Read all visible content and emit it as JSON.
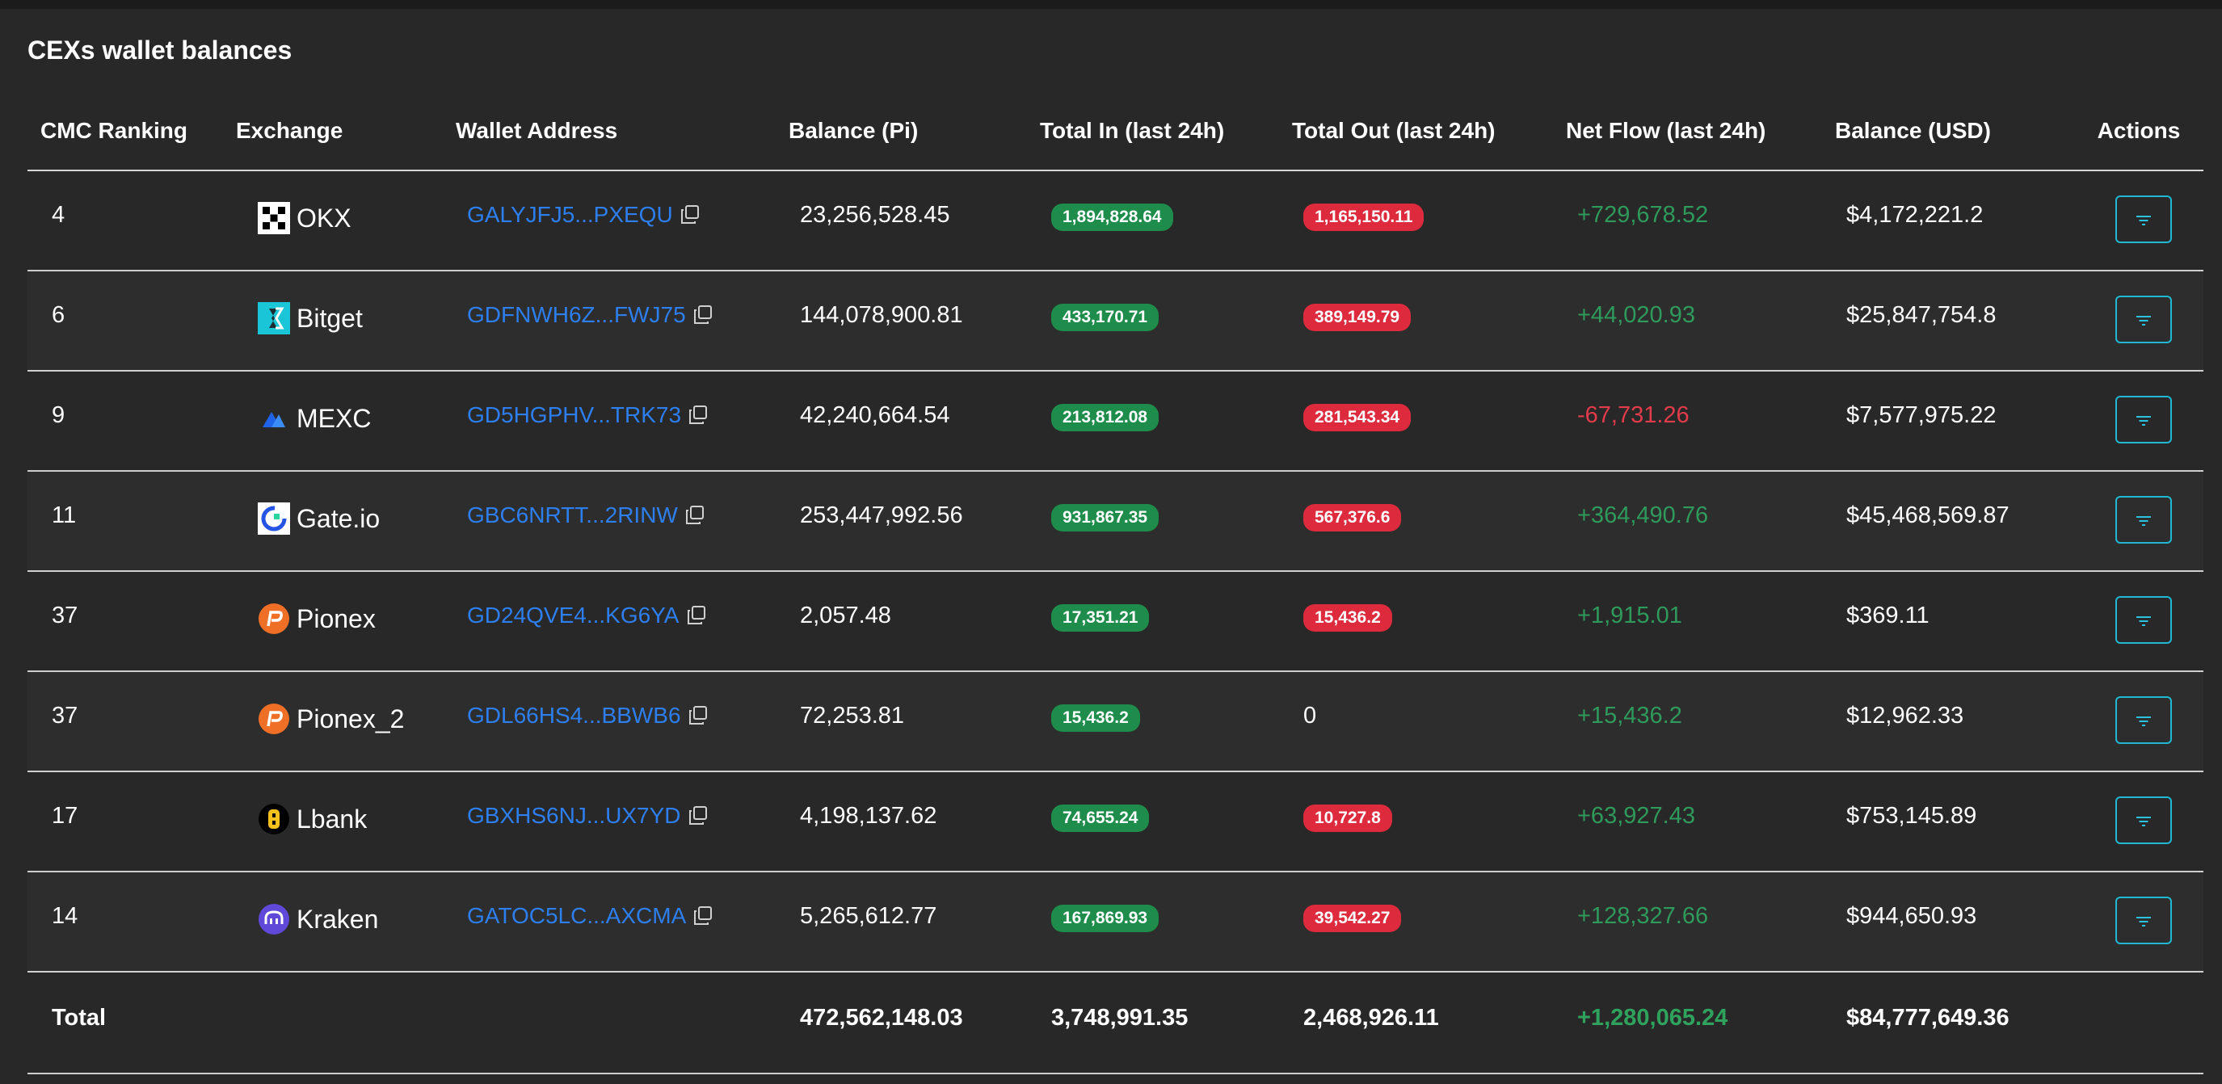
{
  "title": "CEXs wallet balances",
  "colors": {
    "link": "#2d7ff0",
    "badge_green": "#1e8c4b",
    "badge_red": "#de2a3d",
    "flow_positive": "#2e9a5b",
    "flow_negative": "#e23b4a",
    "action_border": "#1fb9d4"
  },
  "table": {
    "headers": [
      "CMC Ranking",
      "Exchange",
      "Wallet Address",
      "Balance (Pi)",
      "Total In (last 24h)",
      "Total Out (last 24h)",
      "Net Flow (last 24h)",
      "Balance (USD)",
      "Actions"
    ],
    "rows": [
      {
        "rank": "4",
        "exchange": "OKX",
        "logo": "okx-logo-icon",
        "address": "GALYJFJ5...PXEQU",
        "balance_pi": "23,256,528.45",
        "total_in": "1,894,828.64",
        "total_out": "1,165,150.11",
        "net_flow": "+729,678.52",
        "net_flow_sign": "positive",
        "balance_usd": "$4,172,221.2"
      },
      {
        "rank": "6",
        "exchange": "Bitget",
        "logo": "bitget-logo-icon",
        "address": "GDFNWH6Z...FWJ75",
        "balance_pi": "144,078,900.81",
        "total_in": "433,170.71",
        "total_out": "389,149.79",
        "net_flow": "+44,020.93",
        "net_flow_sign": "positive",
        "balance_usd": "$25,847,754.8"
      },
      {
        "rank": "9",
        "exchange": "MEXC",
        "logo": "mexc-logo-icon",
        "address": "GD5HGPHV...TRK73",
        "balance_pi": "42,240,664.54",
        "total_in": "213,812.08",
        "total_out": "281,543.34",
        "net_flow": "-67,731.26",
        "net_flow_sign": "negative",
        "balance_usd": "$7,577,975.22"
      },
      {
        "rank": "11",
        "exchange": "Gate.io",
        "logo": "gateio-logo-icon",
        "address": "GBC6NRTT...2RINW",
        "balance_pi": "253,447,992.56",
        "total_in": "931,867.35",
        "total_out": "567,376.6",
        "net_flow": "+364,490.76",
        "net_flow_sign": "positive",
        "balance_usd": "$45,468,569.87"
      },
      {
        "rank": "37",
        "exchange": "Pionex",
        "logo": "pionex-logo-icon",
        "address": "GD24QVE4...KG6YA",
        "balance_pi": "2,057.48",
        "total_in": "17,351.21",
        "total_out": "15,436.2",
        "net_flow": "+1,915.01",
        "net_flow_sign": "positive",
        "balance_usd": "$369.11"
      },
      {
        "rank": "37",
        "exchange": "Pionex_2",
        "logo": "pionex-logo-icon",
        "address": "GDL66HS4...BBWB6",
        "balance_pi": "72,253.81",
        "total_in": "15,436.2",
        "total_out": "0",
        "net_flow": "+15,436.2",
        "net_flow_sign": "positive",
        "balance_usd": "$12,962.33"
      },
      {
        "rank": "17",
        "exchange": "Lbank",
        "logo": "lbank-logo-icon",
        "address": "GBXHS6NJ...UX7YD",
        "balance_pi": "4,198,137.62",
        "total_in": "74,655.24",
        "total_out": "10,727.8",
        "net_flow": "+63,927.43",
        "net_flow_sign": "positive",
        "balance_usd": "$753,145.89"
      },
      {
        "rank": "14",
        "exchange": "Kraken",
        "logo": "kraken-logo-icon",
        "address": "GATOC5LC...AXCMA",
        "balance_pi": "5,265,612.77",
        "total_in": "167,869.93",
        "total_out": "39,542.27",
        "net_flow": "+128,327.66",
        "net_flow_sign": "positive",
        "balance_usd": "$944,650.93"
      }
    ],
    "total": {
      "label": "Total",
      "balance_pi": "472,562,148.03",
      "total_in": "3,748,991.35",
      "total_out": "2,468,926.11",
      "net_flow": "+1,280,065.24",
      "balance_usd": "$84,777,649.36"
    }
  }
}
